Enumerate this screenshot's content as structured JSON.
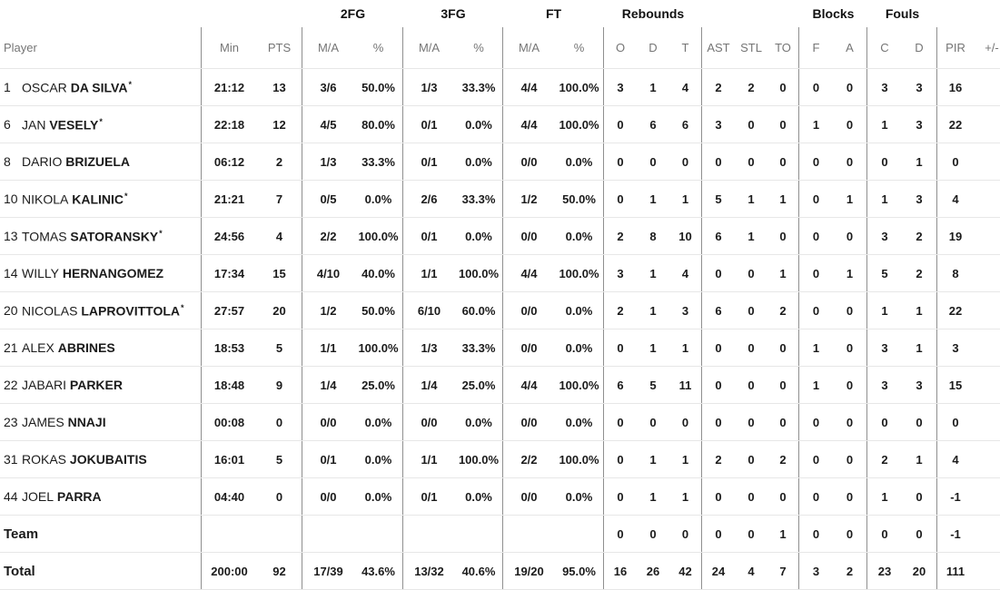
{
  "table": {
    "group_headers": {
      "fg2": "2FG",
      "fg3": "3FG",
      "ft": "FT",
      "rebounds": "Rebounds",
      "blocks": "Blocks",
      "fouls": "Fouls"
    },
    "column_headers": {
      "player": "Player",
      "stats": [
        "Min",
        "PTS",
        "M/A",
        "%",
        "M/A",
        "%",
        "M/A",
        "%",
        "O",
        "D",
        "T",
        "AST",
        "STL",
        "TO",
        "F",
        "A",
        "C",
        "D",
        "PIR",
        "+/-"
      ]
    },
    "starter_mark": "*",
    "rows": [
      {
        "number": "1",
        "first_name": "OSCAR",
        "last_name": "DA SILVA",
        "starter": true,
        "stats": [
          "21:12",
          "13",
          "3/6",
          "50.0%",
          "1/3",
          "33.3%",
          "4/4",
          "100.0%",
          "3",
          "1",
          "4",
          "2",
          "2",
          "0",
          "0",
          "0",
          "3",
          "3",
          "16",
          ""
        ]
      },
      {
        "number": "6",
        "first_name": "JAN",
        "last_name": "VESELY",
        "starter": true,
        "stats": [
          "22:18",
          "12",
          "4/5",
          "80.0%",
          "0/1",
          "0.0%",
          "4/4",
          "100.0%",
          "0",
          "6",
          "6",
          "3",
          "0",
          "0",
          "1",
          "0",
          "1",
          "3",
          "22",
          ""
        ]
      },
      {
        "number": "8",
        "first_name": "DARIO",
        "last_name": "BRIZUELA",
        "starter": false,
        "stats": [
          "06:12",
          "2",
          "1/3",
          "33.3%",
          "0/1",
          "0.0%",
          "0/0",
          "0.0%",
          "0",
          "0",
          "0",
          "0",
          "0",
          "0",
          "0",
          "0",
          "0",
          "1",
          "0",
          ""
        ]
      },
      {
        "number": "10",
        "first_name": "NIKOLA",
        "last_name": "KALINIC",
        "starter": true,
        "stats": [
          "21:21",
          "7",
          "0/5",
          "0.0%",
          "2/6",
          "33.3%",
          "1/2",
          "50.0%",
          "0",
          "1",
          "1",
          "5",
          "1",
          "1",
          "0",
          "1",
          "1",
          "3",
          "4",
          ""
        ]
      },
      {
        "number": "13",
        "first_name": "TOMAS",
        "last_name": "SATORANSKY",
        "starter": true,
        "stats": [
          "24:56",
          "4",
          "2/2",
          "100.0%",
          "0/1",
          "0.0%",
          "0/0",
          "0.0%",
          "2",
          "8",
          "10",
          "6",
          "1",
          "0",
          "0",
          "0",
          "3",
          "2",
          "19",
          ""
        ]
      },
      {
        "number": "14",
        "first_name": "WILLY",
        "last_name": "HERNANGOMEZ",
        "starter": false,
        "stats": [
          "17:34",
          "15",
          "4/10",
          "40.0%",
          "1/1",
          "100.0%",
          "4/4",
          "100.0%",
          "3",
          "1",
          "4",
          "0",
          "0",
          "1",
          "0",
          "1",
          "5",
          "2",
          "8",
          ""
        ]
      },
      {
        "number": "20",
        "first_name": "NICOLAS",
        "last_name": "LAPROVITTOLA",
        "starter": true,
        "stats": [
          "27:57",
          "20",
          "1/2",
          "50.0%",
          "6/10",
          "60.0%",
          "0/0",
          "0.0%",
          "2",
          "1",
          "3",
          "6",
          "0",
          "2",
          "0",
          "0",
          "1",
          "1",
          "22",
          ""
        ]
      },
      {
        "number": "21",
        "first_name": "ALEX",
        "last_name": "ABRINES",
        "starter": false,
        "stats": [
          "18:53",
          "5",
          "1/1",
          "100.0%",
          "1/3",
          "33.3%",
          "0/0",
          "0.0%",
          "0",
          "1",
          "1",
          "0",
          "0",
          "0",
          "1",
          "0",
          "3",
          "1",
          "3",
          ""
        ]
      },
      {
        "number": "22",
        "first_name": "JABARI",
        "last_name": "PARKER",
        "starter": false,
        "stats": [
          "18:48",
          "9",
          "1/4",
          "25.0%",
          "1/4",
          "25.0%",
          "4/4",
          "100.0%",
          "6",
          "5",
          "11",
          "0",
          "0",
          "0",
          "1",
          "0",
          "3",
          "3",
          "15",
          ""
        ]
      },
      {
        "number": "23",
        "first_name": "JAMES",
        "last_name": "NNAJI",
        "starter": false,
        "stats": [
          "00:08",
          "0",
          "0/0",
          "0.0%",
          "0/0",
          "0.0%",
          "0/0",
          "0.0%",
          "0",
          "0",
          "0",
          "0",
          "0",
          "0",
          "0",
          "0",
          "0",
          "0",
          "0",
          ""
        ]
      },
      {
        "number": "31",
        "first_name": "ROKAS",
        "last_name": "JOKUBAITIS",
        "starter": false,
        "stats": [
          "16:01",
          "5",
          "0/1",
          "0.0%",
          "1/1",
          "100.0%",
          "2/2",
          "100.0%",
          "0",
          "1",
          "1",
          "2",
          "0",
          "2",
          "0",
          "0",
          "2",
          "1",
          "4",
          ""
        ]
      },
      {
        "number": "44",
        "first_name": "JOEL",
        "last_name": "PARRA",
        "starter": false,
        "stats": [
          "04:40",
          "0",
          "0/0",
          "0.0%",
          "0/1",
          "0.0%",
          "0/0",
          "0.0%",
          "0",
          "1",
          "1",
          "0",
          "0",
          "0",
          "0",
          "0",
          "1",
          "0",
          "-1",
          ""
        ]
      }
    ],
    "team_row": {
      "label": "Team",
      "stats": [
        "",
        "",
        "",
        "",
        "",
        "",
        "",
        "",
        "0",
        "0",
        "0",
        "0",
        "0",
        "1",
        "0",
        "0",
        "0",
        "0",
        "-1",
        ""
      ]
    },
    "total_row": {
      "label": "Total",
      "stats": [
        "200:00",
        "92",
        "17/39",
        "43.6%",
        "13/32",
        "40.6%",
        "19/20",
        "95.0%",
        "16",
        "26",
        "42",
        "24",
        "4",
        "7",
        "3",
        "2",
        "23",
        "20",
        "111",
        ""
      ]
    }
  },
  "colors": {
    "text": "#1b1b1b",
    "muted_header_text": "#757575",
    "column_divider": "#8f8f8f",
    "row_divider": "#e7e7e7",
    "background": "#ffffff"
  }
}
